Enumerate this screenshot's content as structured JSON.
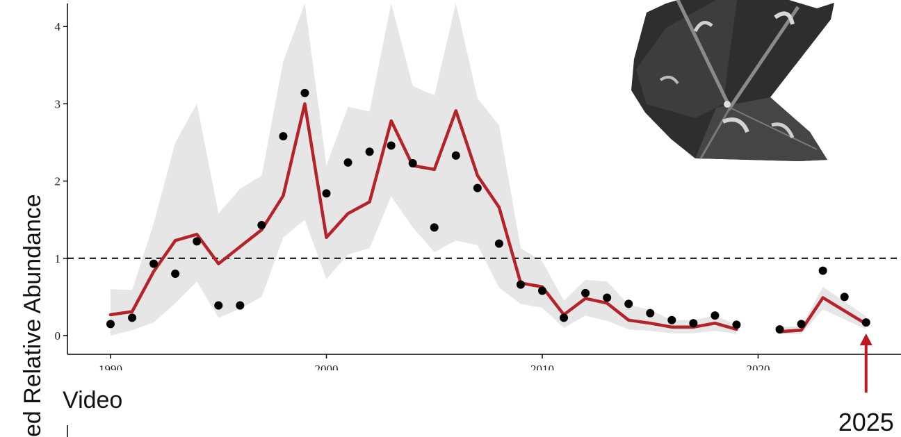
{
  "chart_data": {
    "type": "line",
    "ylabel": "ed Relative Abundance",
    "panel_label": "Video",
    "annotation": {
      "text": "2025",
      "x": 2025,
      "color": "#c0161f"
    },
    "xlim": [
      1988.5,
      2026.5
    ],
    "ylim": [
      -0.3,
      4.3
    ],
    "x_ticks": [
      1990,
      2000,
      2010,
      2020
    ],
    "y_ticks": [
      0,
      1,
      2,
      3,
      4
    ],
    "reference_line": {
      "y": 1,
      "style": "dashed"
    },
    "grid": false,
    "colors": {
      "line": "#b5232a",
      "points": "#000000",
      "band": "#e6e6e6"
    },
    "series": [
      {
        "type": "scatter",
        "x": [
          1990,
          1991,
          1992,
          1993,
          1994,
          1995,
          1996,
          1997,
          1998,
          1999,
          2000,
          2001,
          2002,
          2003,
          2004,
          2005,
          2006,
          2007,
          2008,
          2009,
          2010,
          2011,
          2012,
          2013,
          2014,
          2015,
          2016,
          2017,
          2018,
          2019,
          2021,
          2022,
          2023,
          2024,
          2025
        ],
        "y": [
          0.15,
          0.23,
          0.93,
          0.8,
          1.22,
          0.39,
          0.39,
          1.43,
          2.58,
          3.14,
          1.84,
          2.24,
          2.38,
          2.46,
          2.23,
          1.4,
          2.33,
          1.91,
          1.19,
          0.66,
          0.58,
          0.23,
          0.55,
          0.49,
          0.41,
          0.29,
          0.2,
          0.16,
          0.26,
          0.14,
          0.08,
          0.15,
          0.84,
          0.5,
          0.17
        ]
      },
      {
        "type": "line",
        "segments": [
          {
            "x": [
              1990,
              1991,
              1992,
              1993,
              1994,
              1995,
              1996,
              1997,
              1998,
              1999,
              2000,
              2001,
              2002,
              2003,
              2004,
              2005,
              2006,
              2007,
              2008,
              2009,
              2010,
              2011,
              2012,
              2013,
              2014,
              2015,
              2016,
              2017,
              2018,
              2019
            ],
            "y": [
              0.27,
              0.31,
              0.83,
              1.23,
              1.31,
              0.93,
              1.15,
              1.37,
              1.81,
              3.0,
              1.27,
              1.58,
              1.73,
              2.78,
              2.2,
              2.15,
              2.91,
              2.07,
              1.66,
              0.68,
              0.63,
              0.27,
              0.48,
              0.42,
              0.2,
              0.16,
              0.11,
              0.11,
              0.16,
              0.08
            ]
          },
          {
            "x": [
              2021,
              2022,
              2023,
              2025
            ],
            "y": [
              0.05,
              0.07,
              0.49,
              0.15
            ]
          }
        ]
      },
      {
        "type": "band",
        "segments": [
          {
            "x": [
              1990,
              1991,
              1992,
              1993,
              1994,
              1995,
              1996,
              1997,
              1998,
              1999,
              2000,
              2001,
              2002,
              2003,
              2004,
              2005,
              2006,
              2007,
              2008,
              2009,
              2010,
              2011,
              2012,
              2013,
              2014,
              2015,
              2016,
              2017,
              2018,
              2019
            ],
            "low": [
              0.0,
              0.07,
              0.17,
              0.42,
              0.7,
              0.23,
              0.35,
              0.5,
              1.27,
              1.5,
              0.73,
              1.05,
              1.13,
              1.8,
              1.4,
              1.08,
              1.23,
              1.17,
              0.62,
              0.41,
              0.36,
              0.1,
              0.26,
              0.19,
              0.08,
              0.06,
              0.03,
              0.03,
              0.06,
              0.02
            ],
            "high": [
              0.6,
              0.59,
              1.45,
              2.5,
              3.0,
              1.58,
              1.9,
              2.07,
              3.55,
              4.3,
              2.2,
              2.96,
              2.9,
              4.3,
              3.23,
              3.11,
              4.3,
              3.07,
              2.72,
              1.13,
              0.96,
              0.45,
              0.72,
              0.7,
              0.4,
              0.33,
              0.2,
              0.2,
              0.26,
              0.14
            ]
          },
          {
            "x": [
              2021,
              2022,
              2023,
              2025
            ],
            "low": [
              0.02,
              0.02,
              0.34,
              0.08
            ],
            "high": [
              0.11,
              0.12,
              0.63,
              0.25
            ]
          }
        ]
      }
    ]
  }
}
